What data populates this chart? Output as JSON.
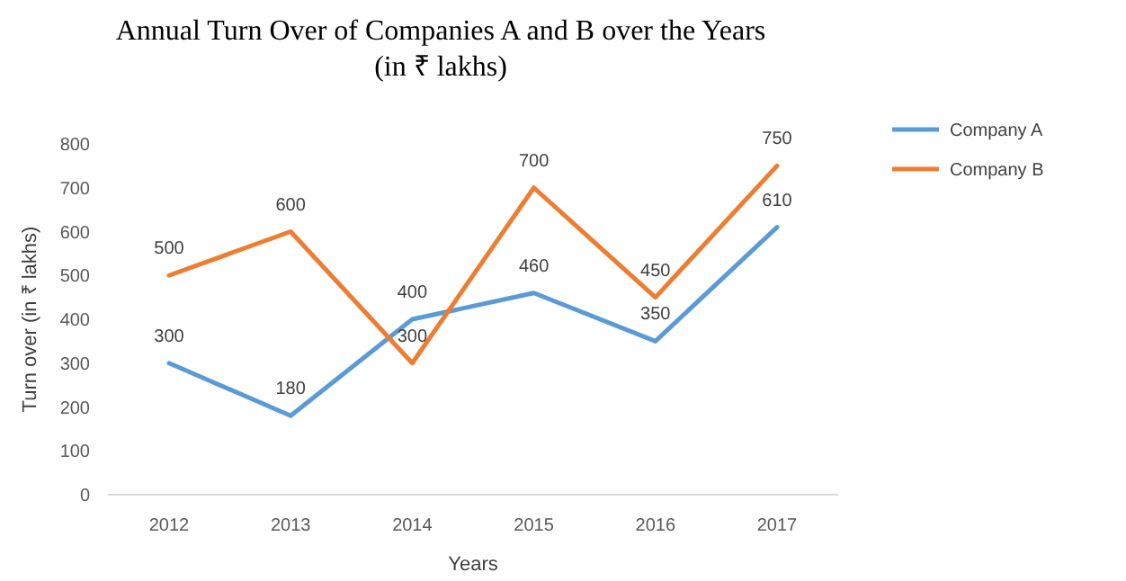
{
  "chart_data": {
    "type": "line",
    "title": "Annual Turn Over of Companies A and B over the Years",
    "subtitle": "(in ₹ lakhs)",
    "xlabel": "Years",
    "ylabel": "Turn over (in ₹ lakhs)",
    "categories": [
      "2012",
      "2013",
      "2014",
      "2015",
      "2016",
      "2017"
    ],
    "series": [
      {
        "name": "Company A",
        "color": "#5b9bd5",
        "values": [
          300,
          180,
          400,
          460,
          350,
          610
        ]
      },
      {
        "name": "Company B",
        "color": "#ed7d31",
        "values": [
          500,
          600,
          300,
          700,
          450,
          750
        ]
      }
    ],
    "ylim": [
      0,
      800
    ],
    "yticks": [
      0,
      100,
      200,
      300,
      400,
      500,
      600,
      700,
      800
    ],
    "data_labels": true,
    "legend": "top right",
    "marker": "none",
    "line_style": "solid"
  }
}
